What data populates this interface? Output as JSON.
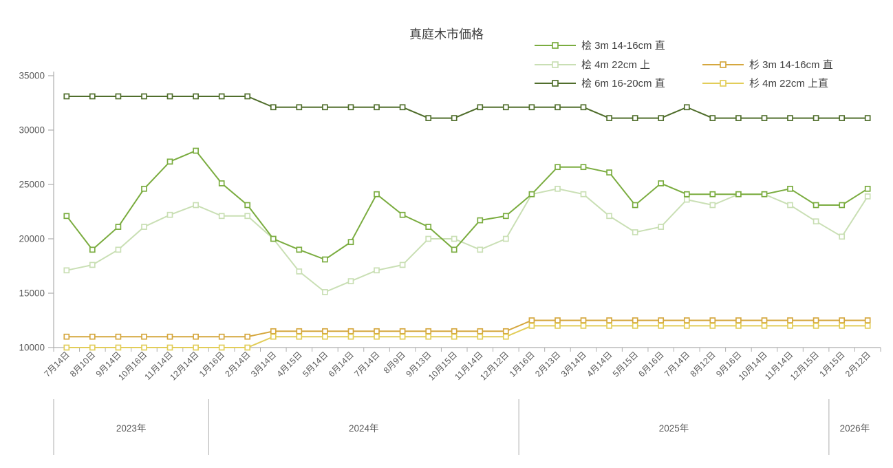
{
  "chart_data": {
    "type": "line",
    "title": "真庭木市価格",
    "grid": false,
    "legend_position": "top-right",
    "x_axis": {
      "categories": [
        "7月14日",
        "8月10日",
        "9月14日",
        "10月16日",
        "11月14日",
        "12月14日",
        "1月16日",
        "2月14日",
        "3月14日",
        "4月15日",
        "5月14日",
        "6月14日",
        "7月14日",
        "8月9日",
        "9月13日",
        "10月15日",
        "11月14日",
        "12月12日",
        "1月16日",
        "2月13日",
        "3月14日",
        "4月14日",
        "5月15日",
        "6月16日",
        "7月14日",
        "8月12日",
        "9月16日",
        "10月14日",
        "11月14日",
        "12月15日",
        "1月15日",
        "2月12日"
      ],
      "year_groups": [
        {
          "label": "2023年",
          "start": 0,
          "count": 6
        },
        {
          "label": "2024年",
          "start": 6,
          "count": 12
        },
        {
          "label": "2025年",
          "start": 18,
          "count": 12
        },
        {
          "label": "2026年",
          "start": 30,
          "count": 2
        }
      ]
    },
    "y_axis": {
      "min": 10000,
      "max": 35000,
      "tick_step": 5000,
      "tick_labels": [
        "10000",
        "15000",
        "20000",
        "25000",
        "30000",
        "35000"
      ]
    },
    "series": [
      {
        "name": "桧 3m 14-16cm 直",
        "color": "#7AAC3F",
        "legend_col": 0,
        "legend_row": 0,
        "z": 5,
        "values": [
          22100,
          19000,
          21100,
          24600,
          27100,
          28100,
          25100,
          23100,
          20000,
          19000,
          18100,
          19700,
          24100,
          22200,
          21100,
          19000,
          21700,
          22100,
          24100,
          26600,
          26600,
          26100,
          23100,
          25100,
          24100,
          24100,
          24100,
          24100,
          24600,
          23100,
          23100,
          24600
        ]
      },
      {
        "name": "桧 4m 22cm 上",
        "color": "#C9DFB4",
        "legend_col": 0,
        "legend_row": 1,
        "z": 1,
        "values": [
          17100,
          17600,
          19000,
          21100,
          22200,
          23100,
          22100,
          22100,
          20000,
          17000,
          15100,
          16100,
          17100,
          17600,
          20000,
          20000,
          19000,
          20000,
          24100,
          24600,
          24100,
          22100,
          20600,
          21100,
          23600,
          23100,
          24100,
          24100,
          23100,
          21600,
          20200,
          23900
        ]
      },
      {
        "name": "桧 6m 16-20cm 直",
        "color": "#506E2C",
        "legend_col": 0,
        "legend_row": 2,
        "z": 2,
        "values": [
          33100,
          33100,
          33100,
          33100,
          33100,
          33100,
          33100,
          33100,
          32100,
          32100,
          32100,
          32100,
          32100,
          32100,
          31100,
          31100,
          32100,
          32100,
          32100,
          32100,
          32100,
          31100,
          31100,
          31100,
          32100,
          31100,
          31100,
          31100,
          31100,
          31100,
          31100,
          31100
        ]
      },
      {
        "name": "杉 3m 14-16cm 直",
        "color": "#D5A73E",
        "legend_col": 1,
        "legend_row": 1,
        "z": 3,
        "values": [
          11000,
          11000,
          11000,
          11000,
          11000,
          11000,
          11000,
          11000,
          11500,
          11500,
          11500,
          11500,
          11500,
          11500,
          11500,
          11500,
          11500,
          11500,
          12500,
          12500,
          12500,
          12500,
          12500,
          12500,
          12500,
          12500,
          12500,
          12500,
          12500,
          12500,
          12500,
          12500
        ]
      },
      {
        "name": "杉 4m 22cm 上直",
        "color": "#E2CD58",
        "legend_col": 1,
        "legend_row": 2,
        "z": 4,
        "values": [
          10000,
          10000,
          10000,
          10000,
          10000,
          10000,
          10000,
          10000,
          11000,
          11000,
          11000,
          11000,
          11000,
          11000,
          11000,
          11000,
          11000,
          11000,
          12000,
          12000,
          12000,
          12000,
          12000,
          12000,
          12000,
          12000,
          12000,
          12000,
          12000,
          12000,
          12000,
          12000
        ]
      }
    ]
  },
  "colors": {
    "axis_line": "#ADADAD",
    "tick_text": "#595959",
    "title_text": "#3F3F3F",
    "legend_text": "#404040"
  }
}
